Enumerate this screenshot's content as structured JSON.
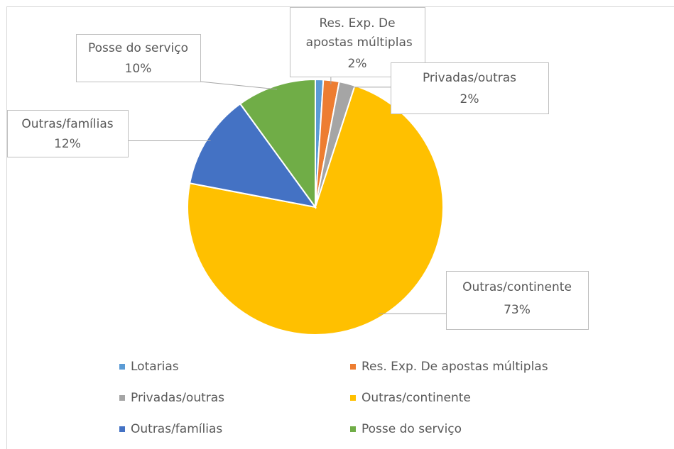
{
  "chart_data": {
    "type": "pie",
    "categories": [
      "Lotarias",
      "Res. Exp. De apostas múltiplas",
      "Privadas/outras",
      "Outras/continente",
      "Outras/famílias",
      "Posse do serviço"
    ],
    "values": [
      1,
      2,
      2,
      73,
      12,
      10
    ],
    "value_labels": [
      null,
      "2%",
      "2%",
      "73%",
      "12%",
      "10%"
    ],
    "colors": [
      "#5B9BD5",
      "#ED7D31",
      "#A5A5A5",
      "#FFC000",
      "#4472C4",
      "#70AD47"
    ],
    "legend": "bottom"
  }
}
